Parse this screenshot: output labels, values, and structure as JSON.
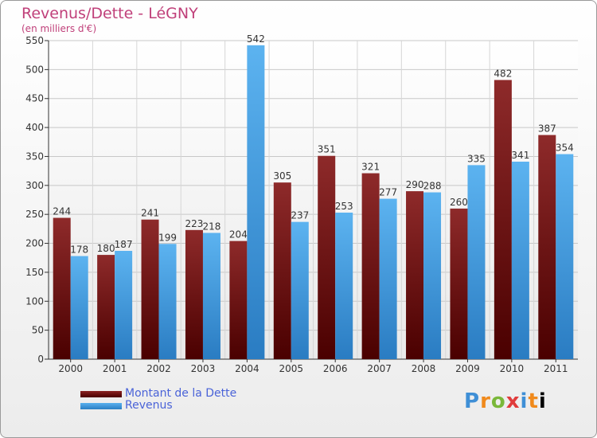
{
  "chart_data": {
    "type": "bar",
    "title": "Revenus/Dette - LéGNY",
    "subtitle": "(en milliers d'€)",
    "categories": [
      "2000",
      "2001",
      "2002",
      "2003",
      "2004",
      "2005",
      "2006",
      "2007",
      "2008",
      "2009",
      "2010",
      "2011"
    ],
    "series": [
      {
        "name": "Montant de la Dette",
        "color": "#7a1a1a",
        "values": [
          244,
          180,
          241,
          223,
          204,
          305,
          351,
          321,
          290,
          260,
          482,
          387
        ]
      },
      {
        "name": "Revenus",
        "color": "#4aa3e6",
        "values": [
          178,
          187,
          199,
          218,
          542,
          237,
          253,
          277,
          288,
          335,
          341,
          354
        ]
      }
    ],
    "ylim": [
      0,
      550
    ],
    "yticks": [
      0,
      50,
      100,
      150,
      200,
      250,
      300,
      350,
      400,
      450,
      500,
      550
    ],
    "grid": true,
    "legend_position": "bottom-left"
  },
  "brand": {
    "logo_text": "Proxiti"
  }
}
